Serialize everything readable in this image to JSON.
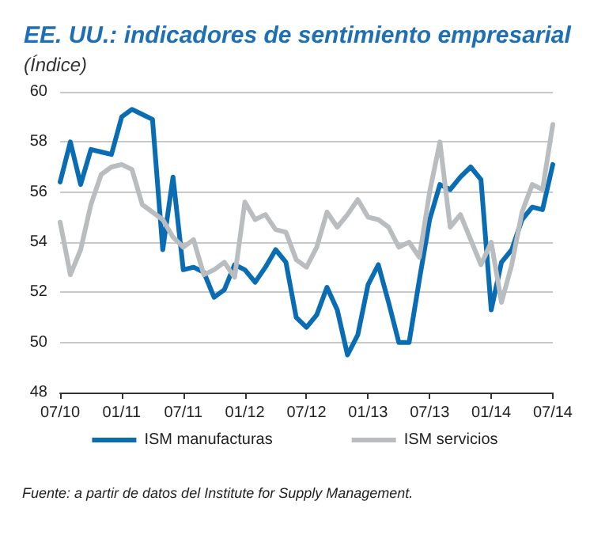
{
  "chart_data": {
    "type": "line",
    "title": "EE. UU.: indicadores de sentimiento empresarial",
    "subtitle": "(Índice)",
    "categories": [
      "07/10",
      null,
      null,
      null,
      null,
      null,
      "01/11",
      null,
      null,
      null,
      null,
      null,
      "07/11",
      null,
      null,
      null,
      null,
      null,
      "01/12",
      null,
      null,
      null,
      null,
      null,
      "07/12",
      null,
      null,
      null,
      null,
      null,
      "01/13",
      null,
      null,
      null,
      null,
      null,
      "07/13",
      null,
      null,
      null,
      null,
      null,
      "01/14",
      null,
      null,
      null,
      null,
      null,
      "07/14"
    ],
    "series": [
      {
        "name": "ISM manufacturas",
        "color": "#0a6db3",
        "values": [
          56.4,
          58.0,
          56.3,
          57.7,
          57.6,
          57.5,
          59.0,
          59.3,
          59.1,
          58.9,
          53.7,
          56.6,
          52.9,
          53.0,
          52.8,
          51.8,
          52.1,
          53.1,
          52.9,
          52.4,
          53.0,
          53.7,
          53.2,
          51.0,
          50.6,
          51.1,
          52.2,
          51.3,
          49.5,
          50.3,
          52.3,
          53.1,
          51.6,
          50.0,
          50.0,
          52.5,
          54.9,
          56.3,
          56.1,
          56.6,
          57.0,
          56.5,
          51.3,
          53.2,
          53.7,
          54.9,
          55.4,
          55.3,
          57.1
        ]
      },
      {
        "name": "ISM servicios",
        "color": "#b9bdbf",
        "values": [
          54.8,
          52.7,
          53.7,
          55.5,
          56.7,
          57.0,
          57.1,
          56.9,
          55.5,
          55.2,
          54.9,
          54.2,
          53.8,
          54.1,
          52.7,
          52.9,
          53.2,
          52.6,
          55.6,
          54.9,
          55.1,
          54.5,
          54.4,
          53.3,
          53.0,
          53.8,
          55.2,
          54.6,
          55.1,
          55.7,
          55.0,
          54.9,
          54.6,
          53.8,
          54.0,
          53.4,
          56.0,
          58.0,
          54.6,
          55.1,
          54.1,
          53.1,
          54.0,
          51.6,
          53.1,
          55.2,
          56.3,
          56.1,
          58.7
        ]
      }
    ],
    "ylim": [
      48,
      60
    ],
    "yticks": [
      48,
      50,
      52,
      54,
      56,
      58,
      60
    ],
    "grid": "y",
    "legend": "bottom",
    "marker": "none",
    "line_style": "solid",
    "annotations": [
      "Fuente: a partir de datos del Institute for Supply Management."
    ]
  }
}
